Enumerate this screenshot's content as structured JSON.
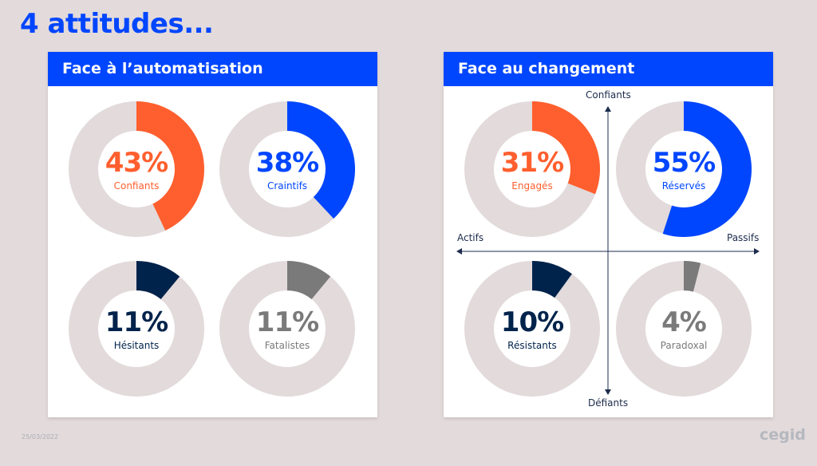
{
  "title": "4 attitudes...",
  "footer": {
    "date": "25/03/2022",
    "logo": "cegid"
  },
  "colors": {
    "background": "#e3dadb",
    "ring": "#e2dadb",
    "orange": "#ff5f2e",
    "blue": "#0046fe",
    "navy": "#00234b",
    "gray": "#7a7a7a"
  },
  "panels": [
    {
      "heading": "Face à l’automatisation",
      "donuts": [
        {
          "value": 43,
          "value_label": "43%",
          "label": "Confiants",
          "color": "#ff5f2e"
        },
        {
          "value": 38,
          "value_label": "38%",
          "label": "Craintifs",
          "color": "#0046fe"
        },
        {
          "value": 11,
          "value_label": "11%",
          "label": "Hésitants",
          "color": "#00234b"
        },
        {
          "value": 11,
          "value_label": "11%",
          "label": "Fatalistes",
          "color": "#7a7a7a"
        }
      ]
    },
    {
      "heading": "Face au changement",
      "axes": {
        "top": "Confiants",
        "bottom": "Défiants",
        "left": "Actifs",
        "right": "Passifs"
      },
      "donuts": [
        {
          "value": 31,
          "value_label": "31%",
          "label": "Engagés",
          "color": "#ff5f2e"
        },
        {
          "value": 55,
          "value_label": "55%",
          "label": "Réservés",
          "color": "#0046fe"
        },
        {
          "value": 10,
          "value_label": "10%",
          "label": "Résistants",
          "color": "#00234b"
        },
        {
          "value": 4,
          "value_label": "4%",
          "label": "Paradoxal",
          "color": "#7a7a7a"
        }
      ]
    }
  ]
}
